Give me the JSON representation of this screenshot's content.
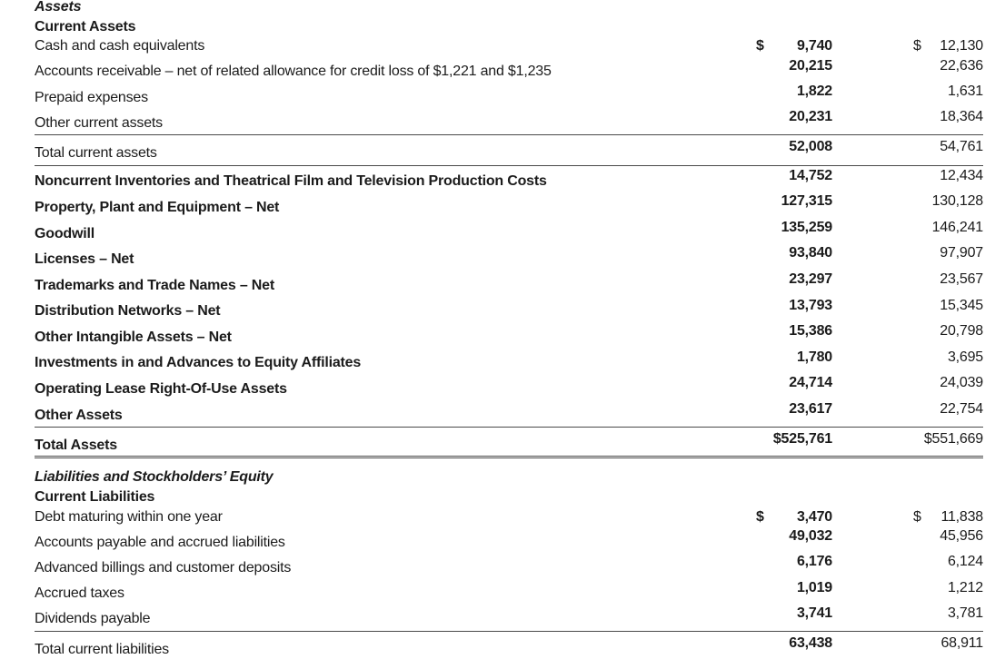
{
  "document": {
    "kind": "consolidated-balance-sheet",
    "colors": {
      "text": "#1b1b1b",
      "rule": "#4a4a4a",
      "background": "#ffffff"
    }
  },
  "table": {
    "rows": [
      {
        "type": "section-title",
        "label": "Assets"
      },
      {
        "type": "group-title",
        "label": "Current Assets"
      },
      {
        "type": "item",
        "label": "Cash and cash equivalents",
        "d1": "$",
        "v1": "9,740",
        "d2": "$",
        "v2": "12,130"
      },
      {
        "type": "item",
        "label": "Accounts receivable – net of related allowance for credit loss of $1,221 and $1,235",
        "v1": "20,215",
        "v2": "22,636"
      },
      {
        "type": "item",
        "label": "Prepaid expenses",
        "v1": "1,822",
        "v2": "1,631"
      },
      {
        "type": "item",
        "label": "Other current assets",
        "v1": "20,231",
        "v2": "18,364"
      },
      {
        "type": "total",
        "label": "Total current assets",
        "v1": "52,008",
        "v2": "54,761",
        "rules": "rt rb"
      },
      {
        "type": "item-bold",
        "label": "Noncurrent Inventories and Theatrical Film and Television Production Costs",
        "v1": "14,752",
        "v2": "12,434"
      },
      {
        "type": "item-bold",
        "label": "Property, Plant and Equipment – Net",
        "v1": "127,315",
        "v2": "130,128"
      },
      {
        "type": "item-bold",
        "label": "Goodwill",
        "v1": "135,259",
        "v2": "146,241"
      },
      {
        "type": "item-bold",
        "label": "Licenses – Net",
        "v1": "93,840",
        "v2": "97,907"
      },
      {
        "type": "item-bold",
        "label": "Trademarks and Trade Names – Net",
        "v1": "23,297",
        "v2": "23,567"
      },
      {
        "type": "item-bold",
        "label": "Distribution Networks – Net",
        "v1": "13,793",
        "v2": "15,345"
      },
      {
        "type": "item-bold",
        "label": "Other Intangible Assets – Net",
        "v1": "15,386",
        "v2": "20,798"
      },
      {
        "type": "item-bold",
        "label": "Investments in and Advances to Equity Affiliates",
        "v1": "1,780",
        "v2": "3,695"
      },
      {
        "type": "item-bold",
        "label": "Operating Lease Right-Of-Use Assets",
        "v1": "24,714",
        "v2": "24,039"
      },
      {
        "type": "item-bold",
        "label": "Other Assets",
        "v1": "23,617",
        "v2": "22,754"
      },
      {
        "type": "total-bold",
        "label": "Total Assets",
        "v1": "$525,761",
        "v2": "$551,669",
        "rules": "rt"
      },
      {
        "type": "double-rule"
      },
      {
        "type": "spacer"
      },
      {
        "type": "section-title",
        "label": "Liabilities and Stockholders’ Equity"
      },
      {
        "type": "group-title",
        "label": "Current Liabilities"
      },
      {
        "type": "item",
        "label": "Debt maturing within one year",
        "d1": "$",
        "v1": "3,470",
        "d2": "$",
        "v2": "11,838"
      },
      {
        "type": "item",
        "label": "Accounts payable and accrued liabilities",
        "v1": "49,032",
        "v2": "45,956"
      },
      {
        "type": "item",
        "label": "Advanced billings and customer deposits",
        "v1": "6,176",
        "v2": "6,124"
      },
      {
        "type": "item",
        "label": "Accrued taxes",
        "v1": "1,019",
        "v2": "1,212"
      },
      {
        "type": "item",
        "label": "Dividends payable",
        "v1": "3,741",
        "v2": "3,781"
      },
      {
        "type": "total",
        "label": "Total current liabilities",
        "v1": "63,438",
        "v2": "68,911",
        "rules": "rt"
      }
    ]
  }
}
